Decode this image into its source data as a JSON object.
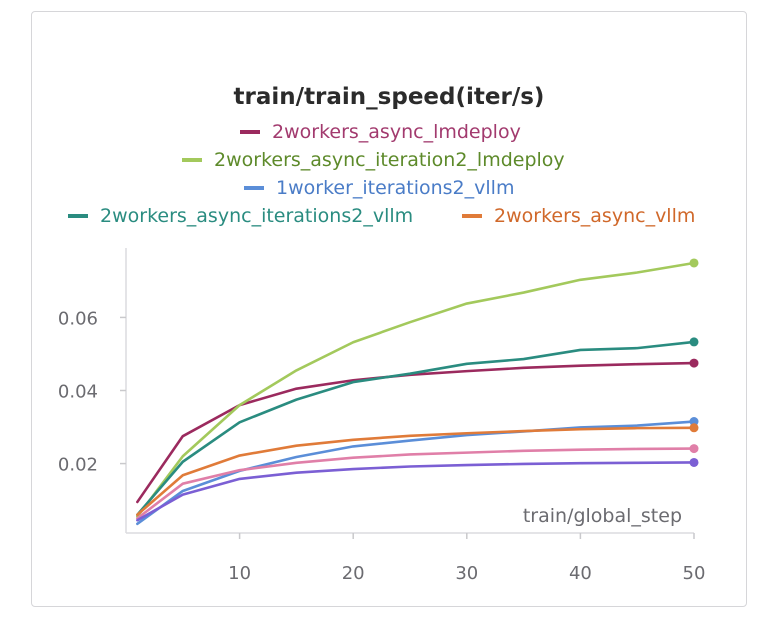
{
  "chart_data": {
    "type": "line",
    "title": "train/train_speed(iter/s)",
    "xlabel": "train/global_step",
    "ylabel": "",
    "xlim": [
      0,
      50
    ],
    "ylim": [
      0.001,
      0.079
    ],
    "x_ticks": [
      10,
      20,
      30,
      40,
      50
    ],
    "y_ticks": [
      0.02,
      0.04,
      0.06
    ],
    "y_tick_labels": [
      "0.02",
      "0.04",
      "0.06"
    ],
    "grid": false,
    "legend_position": "top",
    "x": [
      1,
      5,
      10,
      15,
      20,
      25,
      30,
      35,
      40,
      45,
      50
    ],
    "series": [
      {
        "name": "2workers_async_lmdeploy",
        "color": "#9b2a5e",
        "label_color": "#a23a6e",
        "values": [
          0.0095,
          0.0275,
          0.036,
          0.0405,
          0.0428,
          0.0443,
          0.0453,
          0.0462,
          0.0468,
          0.0472,
          0.0475
        ]
      },
      {
        "name": "2workers_async_iteration2_lmdeploy",
        "color": "#a3c95c",
        "label_color": "#5d8a2a",
        "values": [
          0.0055,
          0.022,
          0.036,
          0.0455,
          0.0532,
          0.0587,
          0.0638,
          0.0668,
          0.0703,
          0.0723,
          0.0749
        ]
      },
      {
        "name": "1worker_iterations2_vllm",
        "color": "#5b8ed8",
        "label_color": "#4a7cc7",
        "values": [
          0.0035,
          0.0125,
          0.018,
          0.0218,
          0.0247,
          0.0263,
          0.0278,
          0.0288,
          0.0299,
          0.0304,
          0.0315
        ]
      },
      {
        "name": "2workers_async_iterations2_vllm",
        "color": "#2a8c80",
        "label_color": "#2a8c80",
        "values": [
          0.006,
          0.0205,
          0.0313,
          0.0375,
          0.0423,
          0.0446,
          0.0473,
          0.0486,
          0.0511,
          0.0516,
          0.0533
        ]
      },
      {
        "name": "2workers_async_vllm",
        "color": "#e07b39",
        "label_color": "#d0682a",
        "values": [
          0.006,
          0.0168,
          0.0222,
          0.0249,
          0.0265,
          0.0276,
          0.0283,
          0.0289,
          0.0294,
          0.0297,
          0.0298
        ]
      },
      {
        "name": "",
        "color": "#e07fa8",
        "values": [
          0.005,
          0.0145,
          0.0182,
          0.0202,
          0.0216,
          0.0225,
          0.023,
          0.0235,
          0.0238,
          0.024,
          0.0241
        ]
      },
      {
        "name": "",
        "color": "#7b5fd4",
        "values": [
          0.0045,
          0.0115,
          0.0158,
          0.0175,
          0.0185,
          0.0192,
          0.0196,
          0.0199,
          0.0201,
          0.0202,
          0.0203
        ]
      }
    ]
  }
}
